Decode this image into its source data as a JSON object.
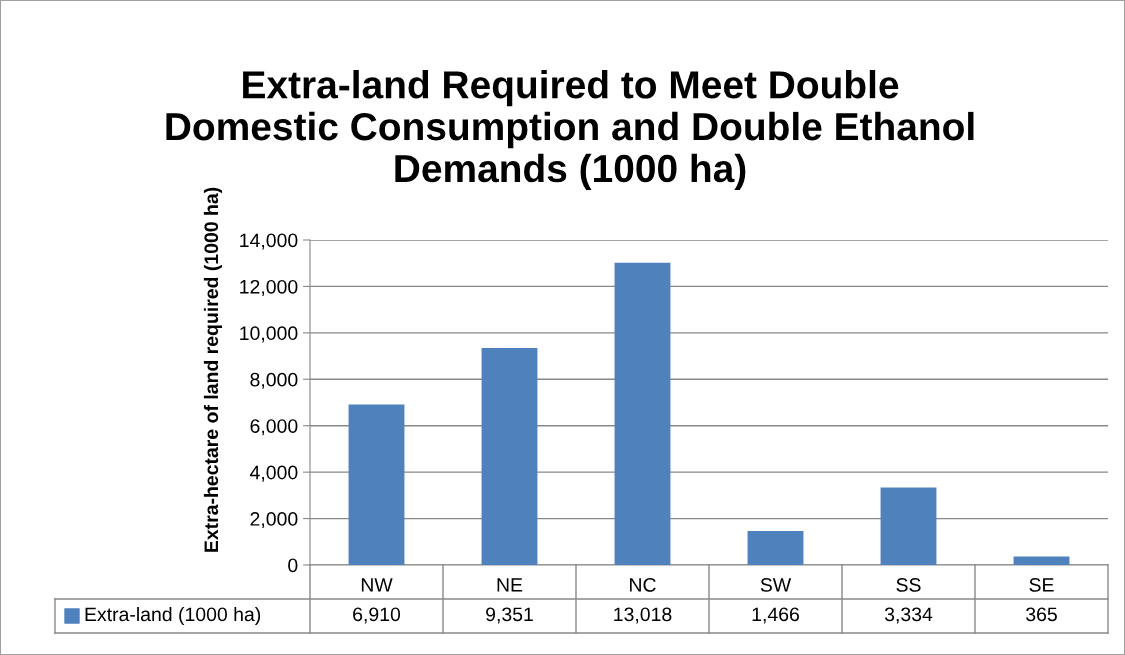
{
  "chart_data": {
    "type": "bar",
    "title": "Extra-land Required to Meet Double\nDomestic Consumption and Double Ethanol\nDemands (1000 ha)",
    "ylabel": "Extra-hectare of land required (1000 ha)",
    "categories": [
      "NW",
      "NE",
      "NC",
      "SW",
      "SS",
      "SE"
    ],
    "series": [
      {
        "name": "Extra-land (1000 ha)",
        "color": "#4f81bd",
        "values": [
          6910,
          9351,
          13018,
          1466,
          3334,
          365
        ],
        "value_labels": [
          "6,910",
          "9,351",
          "13,018",
          "1,466",
          "3,334",
          "365"
        ]
      }
    ],
    "ylim": [
      0,
      14000
    ],
    "yticks": [
      0,
      {
        "value": 2000,
        "label": "2,000"
      },
      {
        "value": 4000,
        "label": "4,000"
      },
      {
        "value": 6000,
        "label": "6,000"
      },
      {
        "value": 8000,
        "label": "8,000"
      },
      {
        "value": 10000,
        "label": "10,000"
      },
      {
        "value": 12000,
        "label": "12,000"
      },
      {
        "value": 14000,
        "label": "14,000"
      }
    ],
    "grid": "y",
    "legend": "bottom"
  }
}
